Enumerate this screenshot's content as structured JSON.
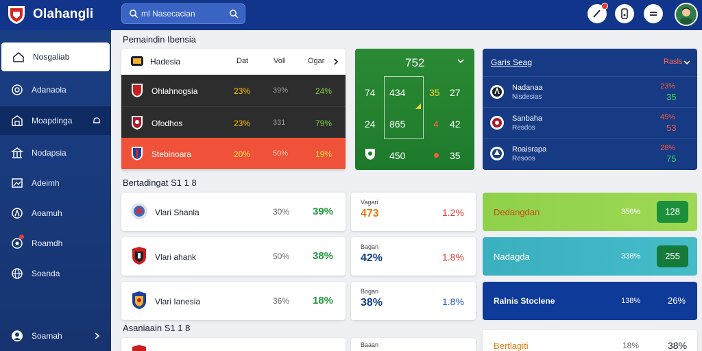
{
  "app": {
    "title": "Olahangli",
    "search_placeholder": "ml Nasecacian"
  },
  "sidebar": {
    "items": [
      {
        "label": "Nosgaliab"
      },
      {
        "label": "Adanaola"
      },
      {
        "label": "Moapdinga"
      },
      {
        "label": "Nodapsia"
      },
      {
        "label": "Adeimh"
      },
      {
        "label": "Aoamuh"
      },
      {
        "label": "Roamdh"
      },
      {
        "label": "Soanda"
      },
      {
        "label": "Soamah"
      }
    ]
  },
  "standings": {
    "section_title": "Pemaindin Ibensia",
    "header": {
      "team": "Hadesia",
      "col1": "Dat",
      "col2": "Voll",
      "col3": "Ogar"
    },
    "rows": [
      {
        "team": "Ohlahnogsia",
        "a": "23%",
        "b": "39%",
        "c": "24%"
      },
      {
        "team": "Ofodhos",
        "a": "23%",
        "b": "331",
        "c": "79%"
      },
      {
        "team": "Stebinoara",
        "a": "20%",
        "b": "50%",
        "c": "19%"
      }
    ]
  },
  "pitch": {
    "title": "752",
    "cells": [
      "74",
      "434",
      "35",
      "27",
      "24",
      "865",
      "4",
      "42",
      "450",
      "35"
    ]
  },
  "results": {
    "title": "Garis Seag",
    "tag": "Rasls",
    "rows": [
      {
        "team": "Nadanaa",
        "sub": "Nisdesias",
        "s1": "23%",
        "s2": "35"
      },
      {
        "team": "Sanbaha",
        "sub": "Resdos",
        "s1": "45%",
        "s2": "53"
      },
      {
        "team": "Roaisrapa",
        "sub": "Resoos",
        "s1": "28%",
        "s2": "75"
      }
    ]
  },
  "matches": {
    "section_title": "Bertadingat S1 1 8",
    "section2_title": "Asaniaain S1 1 8",
    "rows": [
      {
        "team": "Vlari Shanla",
        "p1": "30%",
        "p2": "39%",
        "mini_label": "Vagari",
        "mini_val": "473",
        "pct": "1.2%",
        "band": "Dedangdan",
        "band_pct": "356%",
        "band_val": "128"
      },
      {
        "team": "Vlari ahank",
        "p1": "50%",
        "p2": "38%",
        "mini_label": "Bagari",
        "mini_val": "42%",
        "pct": "1.8%",
        "band": "Nadagda",
        "band_pct": "338%",
        "band_val": "255"
      },
      {
        "team": "Vlari Ianesia",
        "p1": "36%",
        "p2": "18%",
        "mini_label": "Bogari",
        "mini_val": "38%",
        "pct": "1.8%",
        "band": "Ralnis Stoclene",
        "band_pct": "138%",
        "band_val": "26%"
      }
    ],
    "bottom": {
      "mini_label": "Baaan",
      "band": "Bertlagiti",
      "band_pct": "18%",
      "band_val": "38%"
    }
  }
}
